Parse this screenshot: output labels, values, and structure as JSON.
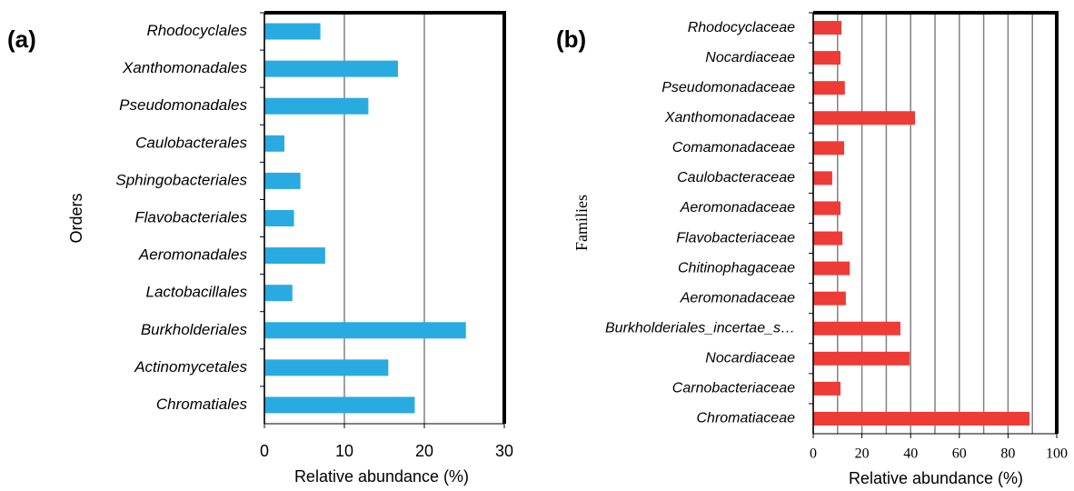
{
  "chart_data": [
    {
      "type": "bar",
      "orientation": "horizontal",
      "panel_label": "(a)",
      "ylabel": "Orders",
      "xlabel": "Relative abundance (%)",
      "categories": [
        "Rhodocyclales",
        "Xanthomonadales",
        "Pseudomonadales",
        "Caulobacterales",
        "Sphingobacteriales",
        "Flavobacteriales",
        "Aeromonadales",
        "Lactobacillales",
        "Burkholderiales",
        "Actinomycetales",
        "Chromatiales"
      ],
      "values": [
        7,
        16.7,
        13,
        2.5,
        4.5,
        3.7,
        7.6,
        3.5,
        25.2,
        15.5,
        18.8
      ],
      "color": "#29abe2",
      "xlim": [
        0,
        30
      ],
      "xticks": [
        0,
        10,
        20,
        30
      ],
      "grid": true
    },
    {
      "type": "bar",
      "orientation": "horizontal",
      "panel_label": "(b)",
      "ylabel": "Families",
      "xlabel": "Relative abundance (%)",
      "categories": [
        "Rhodocyclaceae",
        "Nocardiaceae",
        "Pseudomonadaceae",
        "Xanthomonadaceae",
        "Comamonadaceae",
        "Caulobacteraceae",
        "Aeromonadaceae",
        "Flavobacteriaceae",
        "Chitinophagaceae",
        "Aeromonadaceae",
        "Burkholderiales_incertae_s…",
        "Nocardiaceae",
        "Carnobacteriaceae",
        "Chromatiaceae"
      ],
      "values": [
        11.6,
        11.2,
        13,
        41.8,
        12.7,
        7.8,
        11.2,
        12,
        15,
        13.4,
        35.8,
        39.6,
        11.2,
        88.8
      ],
      "color": "#ef3b36",
      "xlim": [
        0,
        100
      ],
      "xticks": [
        0,
        20,
        40,
        60,
        80,
        100
      ],
      "minor_xticks": [
        10,
        30,
        50,
        70,
        90
      ],
      "grid": true
    }
  ]
}
